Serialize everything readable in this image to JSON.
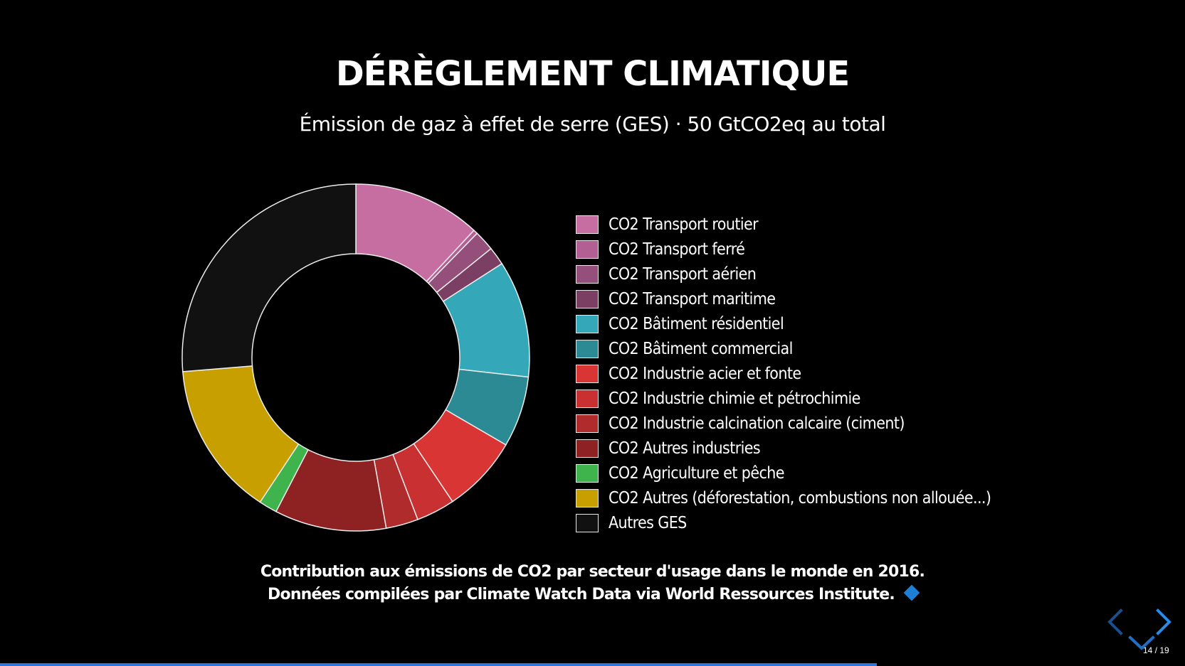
{
  "slide": {
    "title": "DÉRÈGLEMENT CLIMATIQUE",
    "subtitle": "Émission de gaz à effet de serre (GES) · 50 GtCO2eq au total",
    "caption_line1": "Contribution aux émissions de CO2 par secteur d'usage dans le monde en 2016.",
    "caption_line2": "Données compilées par Climate Watch Data via World Ressources Institute."
  },
  "navigation": {
    "prev_icon": "chevron-left-icon",
    "next_icon": "chevron-right-icon",
    "down_icon": "chevron-down-icon",
    "slide_number": "14 / 19",
    "progress": 0.74
  },
  "colors": {
    "accent": "#2a76dd",
    "background": "#000000",
    "slice_border": "#ececec"
  },
  "chart_data": {
    "type": "pie",
    "donut": true,
    "title": "Émission de gaz à effet de serre (GES) · 50 GtCO2eq au total",
    "legend_position": "right",
    "series": [
      {
        "name": "CO2 Transport routier",
        "value": 11.9,
        "color": "#c66ea2"
      },
      {
        "name": "CO2 Transport ferré",
        "value": 0.4,
        "color": "#b26093"
      },
      {
        "name": "CO2 Transport aérien",
        "value": 1.9,
        "color": "#944f7b"
      },
      {
        "name": "CO2 Transport maritime",
        "value": 1.7,
        "color": "#7a3f63"
      },
      {
        "name": "CO2 Bâtiment résidentiel",
        "value": 10.9,
        "color": "#34a8b8"
      },
      {
        "name": "CO2 Bâtiment commercial",
        "value": 6.6,
        "color": "#2b8a93"
      },
      {
        "name": "CO2 Industrie acier et fonte",
        "value": 7.2,
        "color": "#d93534"
      },
      {
        "name": "CO2 Industrie chimie et pétrochimie",
        "value": 3.6,
        "color": "#c83031"
      },
      {
        "name": "CO2 Industrie calcination calcaire (ciment)",
        "value": 3.0,
        "color": "#b02b2b"
      },
      {
        "name": "CO2 Autres industries",
        "value": 10.4,
        "color": "#8e2121"
      },
      {
        "name": "CO2 Agriculture et pêche",
        "value": 1.7,
        "color": "#3fb44c"
      },
      {
        "name": "CO2 Autres (déforestation, combustions non allouée...)",
        "value": 14.4,
        "color": "#c7a000"
      },
      {
        "name": "Autres GES",
        "value": 26.3,
        "color": "#111111"
      }
    ]
  }
}
